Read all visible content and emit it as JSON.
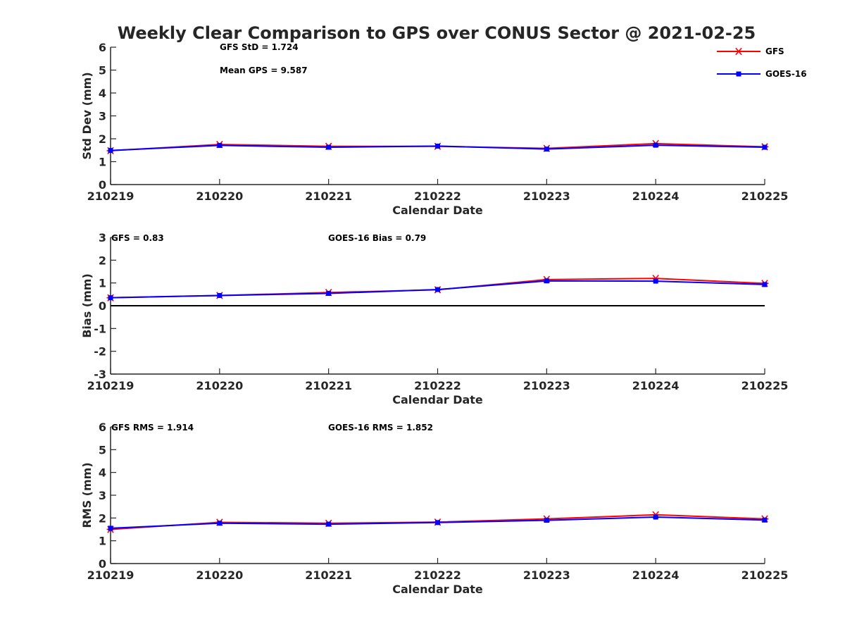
{
  "page_title": "Weekly Clear Comparison to GPS over CONUS Sector @ 2021-02-25",
  "colors": {
    "gfs": "#ff0000",
    "goes16": "#0000ff",
    "axis": "#262626",
    "zero_line": "#000000"
  },
  "legend": {
    "placement": "top-right",
    "items": [
      {
        "name": "GFS",
        "marker": "asterisk",
        "color": "#ff0000"
      },
      {
        "name": "GOES-16",
        "marker": "square",
        "color": "#0000ff"
      }
    ]
  },
  "chart_data": [
    {
      "type": "line",
      "title": "Weekly Clear Comparison to GPS over CONUS Sector @ 2021-02-25",
      "xlabel": "Calendar Date",
      "ylabel": "Std Dev (mm)",
      "categories": [
        "210219",
        "210220",
        "210221",
        "210222",
        "210223",
        "210224",
        "210225"
      ],
      "ylim": [
        0,
        6
      ],
      "yticks": [
        "0",
        "1",
        "2",
        "3",
        "4",
        "5",
        "6"
      ],
      "grid": false,
      "annotations": [
        "GFS StD = 1.724",
        "Mean GPS = 9.587"
      ],
      "series": [
        {
          "name": "GFS",
          "values": [
            1.48,
            1.75,
            1.67,
            1.67,
            1.58,
            1.79,
            1.65
          ]
        },
        {
          "name": "GOES-16",
          "values": [
            1.49,
            1.71,
            1.63,
            1.68,
            1.55,
            1.72,
            1.63
          ]
        }
      ]
    },
    {
      "type": "line",
      "xlabel": "Calendar Date",
      "ylabel": "Bias (mm)",
      "categories": [
        "210219",
        "210220",
        "210221",
        "210222",
        "210223",
        "210224",
        "210225"
      ],
      "ylim": [
        -3,
        3
      ],
      "yticks": [
        "-3",
        "-2",
        "-1",
        "0",
        "1",
        "2",
        "3"
      ],
      "grid": false,
      "zero_line": true,
      "annotations": [
        "GFS = 0.83",
        "GOES-16 Bias  = 0.79"
      ],
      "series": [
        {
          "name": "GFS",
          "values": [
            0.35,
            0.45,
            0.58,
            0.7,
            1.15,
            1.2,
            0.98
          ]
        },
        {
          "name": "GOES-16",
          "values": [
            0.35,
            0.45,
            0.54,
            0.71,
            1.09,
            1.08,
            0.93
          ]
        }
      ]
    },
    {
      "type": "line",
      "xlabel": "Calendar Date",
      "ylabel": "RMS (mm)",
      "categories": [
        "210219",
        "210220",
        "210221",
        "210222",
        "210223",
        "210224",
        "210225"
      ],
      "ylim": [
        0,
        6
      ],
      "yticks": [
        "0",
        "1",
        "2",
        "3",
        "4",
        "5",
        "6"
      ],
      "grid": false,
      "annotations": [
        "GFS RMS = 1.914",
        "GOES-16 RMS = 1.852"
      ],
      "series": [
        {
          "name": "GFS",
          "values": [
            1.5,
            1.81,
            1.77,
            1.82,
            1.96,
            2.14,
            1.96
          ]
        },
        {
          "name": "GOES-16",
          "values": [
            1.55,
            1.77,
            1.73,
            1.8,
            1.9,
            2.04,
            1.91
          ]
        }
      ]
    }
  ]
}
